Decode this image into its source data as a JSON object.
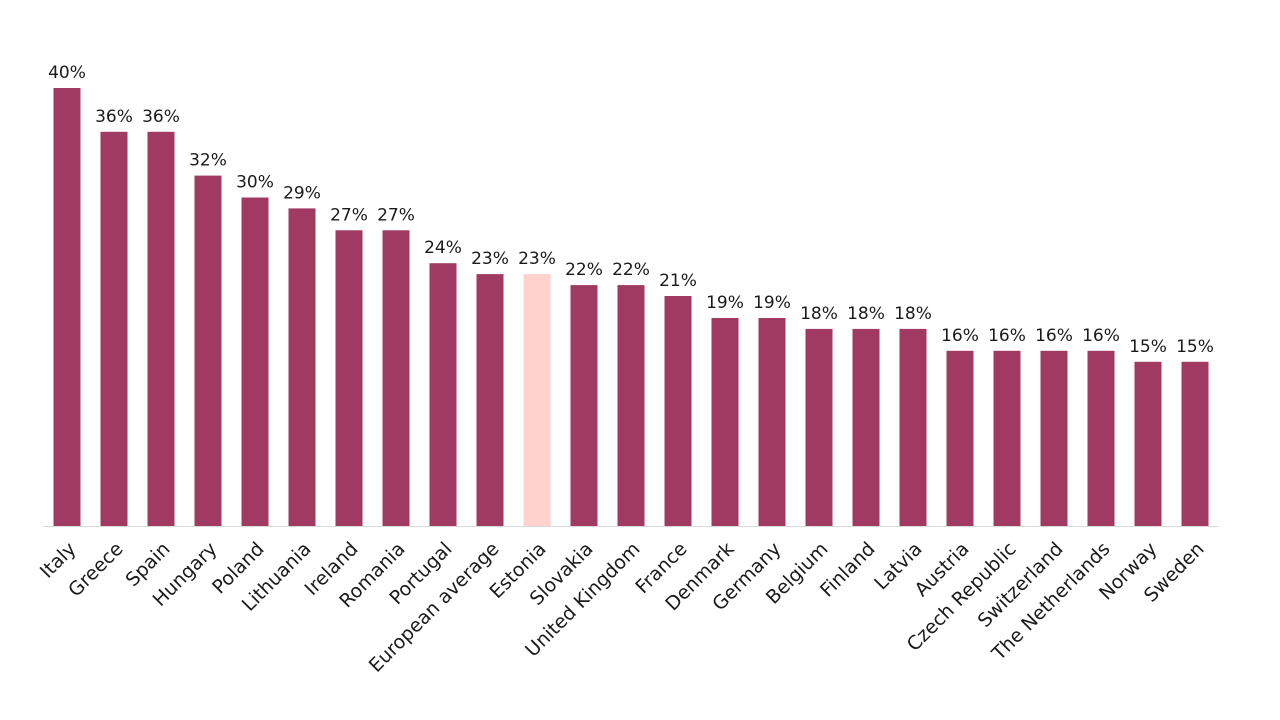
{
  "chart_data": {
    "type": "bar",
    "title": "",
    "xlabel": "",
    "ylabel": "",
    "ylim": [
      0,
      40
    ],
    "grid": false,
    "legend": "none",
    "value_suffix": "%",
    "colors": {
      "default_bar": "#A03A62",
      "highlight_bar": "#FFD2CC",
      "baseline": "#D9D9D9",
      "text": "#1A1A1A"
    },
    "highlight": "Estonia",
    "categories": [
      "Italy",
      "Greece",
      "Spain",
      "Hungary",
      "Poland",
      "Lithuania",
      "Ireland",
      "Romania",
      "Portugal",
      "European average",
      "Estonia",
      "Slovakia",
      "United Kingdom",
      "France",
      "Denmark",
      "Germany",
      "Belgium",
      "Finland",
      "Latvia",
      "Austria",
      "Czech Republic",
      "Switzerland",
      "The Netherlands",
      "Norway",
      "Sweden"
    ],
    "values": [
      40,
      36,
      36,
      32,
      30,
      29,
      27,
      27,
      24,
      23,
      23,
      22,
      22,
      21,
      19,
      19,
      18,
      18,
      18,
      16,
      16,
      16,
      16,
      15,
      15
    ],
    "data_labels": [
      "40%",
      "36%",
      "36%",
      "32%",
      "30%",
      "29%",
      "27%",
      "27%",
      "24%",
      "23%",
      "23%",
      "22%",
      "22%",
      "21%",
      "19%",
      "19%",
      "18%",
      "18%",
      "18%",
      "16%",
      "16%",
      "16%",
      "16%",
      "15%",
      "15%"
    ]
  }
}
